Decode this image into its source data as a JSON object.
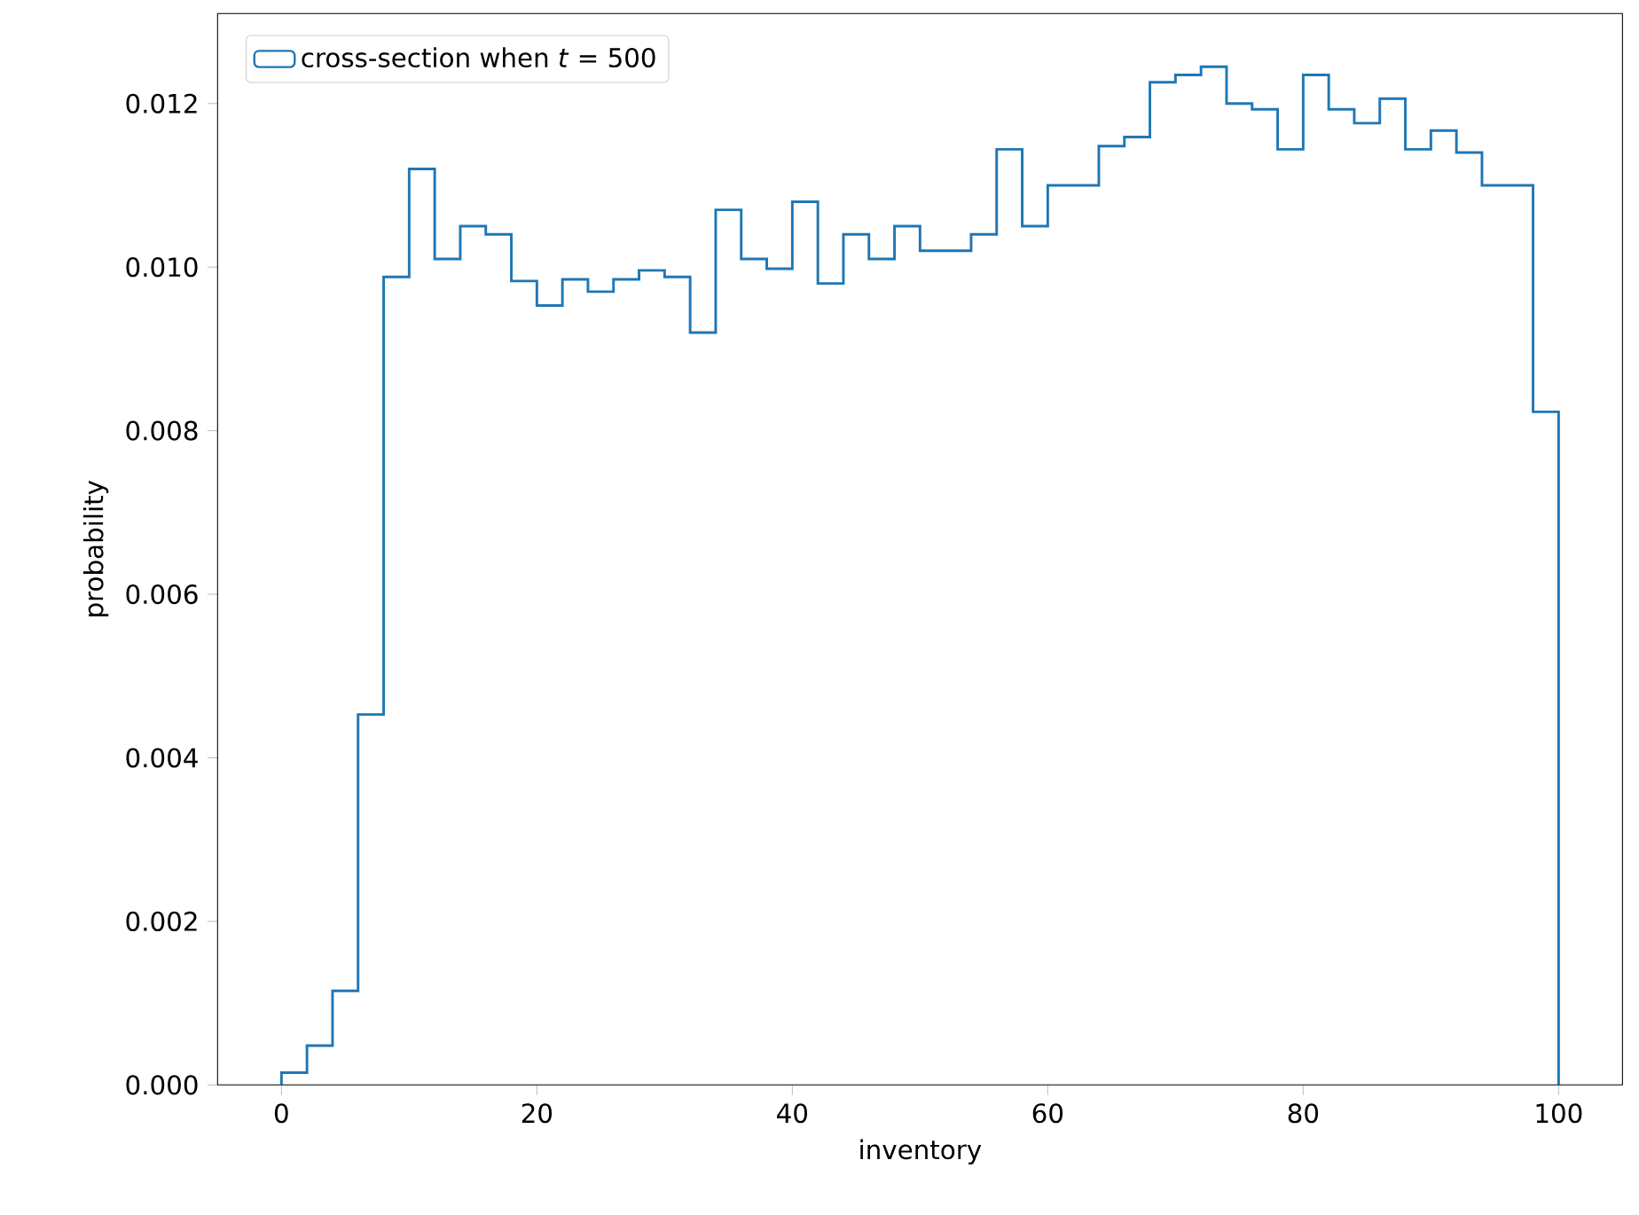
{
  "chart_data": {
    "type": "histogram",
    "xlabel": "inventory",
    "ylabel": "probability",
    "bins": [
      0,
      2,
      4,
      6,
      8,
      10,
      12,
      14,
      16,
      18,
      20,
      22,
      24,
      26,
      28,
      30,
      32,
      34,
      36,
      38,
      40,
      42,
      44,
      46,
      48,
      50,
      52,
      54,
      56,
      58,
      60,
      62,
      64,
      66,
      68,
      70,
      72,
      74,
      76,
      78,
      80,
      82,
      84,
      86,
      88,
      90,
      92,
      94,
      96,
      98,
      100
    ],
    "series": [
      {
        "name": "cross-section when *t* = 500",
        "color": "#1f77b4",
        "values": [
          0.00015,
          0.00048,
          0.00115,
          0.00453,
          0.00988,
          0.0112,
          0.0101,
          0.0105,
          0.0104,
          0.00983,
          0.00953,
          0.00985,
          0.0097,
          0.00985,
          0.00996,
          0.00988,
          0.0092,
          0.0107,
          0.0101,
          0.00998,
          0.0108,
          0.0098,
          0.0104,
          0.0101,
          0.0105,
          0.0102,
          0.0102,
          0.0104,
          0.01144,
          0.0105,
          0.011,
          0.011,
          0.01148,
          0.01159,
          0.01226,
          0.01235,
          0.01245,
          0.012,
          0.01193,
          0.01144,
          0.01235,
          0.01193,
          0.01176,
          0.01206,
          0.01144,
          0.01167,
          0.0114,
          0.011,
          0.011,
          0.00823
        ]
      }
    ],
    "xlim": [
      -5,
      105
    ],
    "ylim": [
      0,
      0.0131
    ],
    "xticks": [
      0,
      20,
      40,
      60,
      80,
      100
    ],
    "yticks": [
      {
        "value": 0,
        "label": "0.000"
      },
      {
        "value": 0.002,
        "label": "0.002"
      },
      {
        "value": 0.004,
        "label": "0.004"
      },
      {
        "value": 0.006,
        "label": "0.006"
      },
      {
        "value": 0.008,
        "label": "0.008"
      },
      {
        "value": 0.01,
        "label": "0.010"
      },
      {
        "value": 0.012,
        "label": "0.012"
      }
    ],
    "legend": "top left",
    "grid": false
  }
}
